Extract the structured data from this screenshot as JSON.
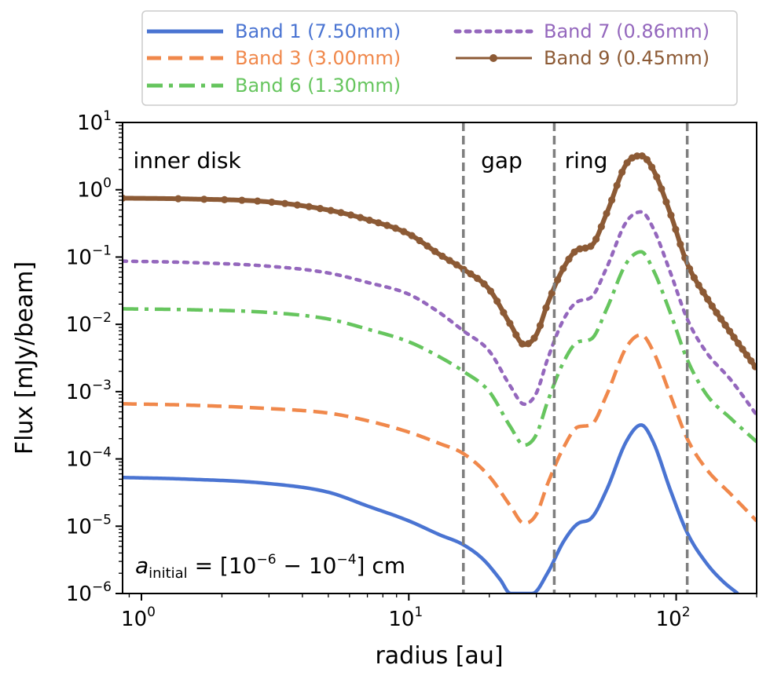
{
  "chart_data": {
    "type": "line",
    "xscale": "log",
    "yscale": "log",
    "xlabel": "radius [au]",
    "ylabel": "Flux [mJy/beam]",
    "xlim": [
      0.85,
      200
    ],
    "ylim": [
      1e-06,
      10
    ],
    "x_ticks": [
      {
        "value": 1,
        "base": "10",
        "exp": "0"
      },
      {
        "value": 10,
        "base": "10",
        "exp": "1"
      },
      {
        "value": 100,
        "base": "10",
        "exp": "2"
      }
    ],
    "y_ticks": [
      {
        "value": 1e-06,
        "base": "10",
        "exp": "−6"
      },
      {
        "value": 1e-05,
        "base": "10",
        "exp": "−5"
      },
      {
        "value": 0.0001,
        "base": "10",
        "exp": "−4"
      },
      {
        "value": 0.001,
        "base": "10",
        "exp": "−3"
      },
      {
        "value": 0.01,
        "base": "10",
        "exp": "−2"
      },
      {
        "value": 0.1,
        "base": "10",
        "exp": "−1"
      },
      {
        "value": 1,
        "base": "10",
        "exp": "0"
      },
      {
        "value": 10,
        "base": "10",
        "exp": "1"
      }
    ],
    "vlines": [
      16,
      35,
      110
    ],
    "regions": [
      {
        "label": "inner disk",
        "x": 0.9
      },
      {
        "label": "gap",
        "x": 18
      },
      {
        "label": "ring",
        "x": 37
      }
    ],
    "annotation": {
      "symbol": "a",
      "sub": "initial",
      "eq": " = [10",
      "e1": "−6",
      "mid": " − 10",
      "e2": "−4",
      "end": "] cm"
    },
    "series": [
      {
        "name": "Band 1 (7.50mm)",
        "color": "#4a74d2",
        "dash": "solid",
        "markers": false,
        "points": [
          [
            0.85,
            5.3e-05
          ],
          [
            1.5,
            5e-05
          ],
          [
            3,
            4.3e-05
          ],
          [
            5,
            3.2e-05
          ],
          [
            7,
            2e-05
          ],
          [
            10,
            1.2e-05
          ],
          [
            13,
            7.5e-06
          ],
          [
            16,
            5.3e-06
          ],
          [
            19,
            3.2e-06
          ],
          [
            22,
            1.6e-06
          ],
          [
            24,
            1e-06
          ],
          [
            29,
            1e-06
          ],
          [
            33,
            2e-06
          ],
          [
            38,
            6e-06
          ],
          [
            43,
            1.1e-05
          ],
          [
            48,
            1.3e-05
          ],
          [
            55,
            3.5e-05
          ],
          [
            65,
            0.00018
          ],
          [
            74,
            0.00032
          ],
          [
            82,
            0.00018
          ],
          [
            95,
            3.5e-05
          ],
          [
            110,
            8e-06
          ],
          [
            130,
            2.8e-06
          ],
          [
            150,
            1.5e-06
          ],
          [
            170,
            1e-06
          ]
        ]
      },
      {
        "name": "Band 3 (3.00mm)",
        "color": "#f0884b",
        "dash": "dashed",
        "markers": false,
        "points": [
          [
            0.85,
            0.00066
          ],
          [
            1.5,
            0.00063
          ],
          [
            3,
            0.00056
          ],
          [
            5,
            0.00048
          ],
          [
            7,
            0.00037
          ],
          [
            10,
            0.00025
          ],
          [
            13,
            0.00017
          ],
          [
            16,
            0.00012
          ],
          [
            20,
            5.5e-05
          ],
          [
            24,
            2e-05
          ],
          [
            27,
            1.1e-05
          ],
          [
            30,
            1.5e-05
          ],
          [
            33,
            4.2e-05
          ],
          [
            38,
            0.00015
          ],
          [
            43,
            0.0003
          ],
          [
            48,
            0.00032
          ],
          [
            55,
            0.0009
          ],
          [
            65,
            0.0045
          ],
          [
            74,
            0.007
          ],
          [
            82,
            0.004
          ],
          [
            95,
            0.0009
          ],
          [
            110,
            0.0002
          ],
          [
            130,
            7e-05
          ],
          [
            160,
            3e-05
          ],
          [
            200,
            1.2e-05
          ]
        ]
      },
      {
        "name": "Band 6 (1.30mm)",
        "color": "#66c55e",
        "dash": "dashdot",
        "markers": false,
        "points": [
          [
            0.85,
            0.017
          ],
          [
            1.5,
            0.0165
          ],
          [
            3,
            0.015
          ],
          [
            5,
            0.012
          ],
          [
            7,
            0.0085
          ],
          [
            10,
            0.0055
          ],
          [
            13,
            0.0033
          ],
          [
            16,
            0.002
          ],
          [
            20,
            0.001
          ],
          [
            24,
            0.0003
          ],
          [
            27,
            0.00016
          ],
          [
            30,
            0.00023
          ],
          [
            33,
            0.0007
          ],
          [
            38,
            0.0028
          ],
          [
            43,
            0.0055
          ],
          [
            48,
            0.006
          ],
          [
            55,
            0.017
          ],
          [
            65,
            0.08
          ],
          [
            74,
            0.12
          ],
          [
            82,
            0.065
          ],
          [
            95,
            0.015
          ],
          [
            110,
            0.003
          ],
          [
            130,
            0.0009
          ],
          [
            160,
            0.0004
          ],
          [
            200,
            0.00018
          ]
        ]
      },
      {
        "name": "Band 7 (0.86mm)",
        "color": "#9467bd",
        "dash": "dotted",
        "markers": false,
        "points": [
          [
            0.85,
            0.087
          ],
          [
            1.5,
            0.083
          ],
          [
            3,
            0.073
          ],
          [
            5,
            0.058
          ],
          [
            7,
            0.042
          ],
          [
            10,
            0.028
          ],
          [
            13,
            0.015
          ],
          [
            16,
            0.008
          ],
          [
            20,
            0.004
          ],
          [
            24,
            0.0012
          ],
          [
            27,
            0.00065
          ],
          [
            30,
            0.00095
          ],
          [
            33,
            0.003
          ],
          [
            38,
            0.012
          ],
          [
            43,
            0.022
          ],
          [
            48,
            0.025
          ],
          [
            55,
            0.07
          ],
          [
            65,
            0.33
          ],
          [
            74,
            0.47
          ],
          [
            82,
            0.27
          ],
          [
            95,
            0.06
          ],
          [
            110,
            0.012
          ],
          [
            130,
            0.0038
          ],
          [
            160,
            0.0015
          ],
          [
            200,
            0.00045
          ]
        ]
      },
      {
        "name": "Band 9 (0.45mm)",
        "color": "#8c5a35",
        "dash": "solid",
        "markers": true,
        "points": [
          [
            0.85,
            0.75
          ],
          [
            1.5,
            0.73
          ],
          [
            3,
            0.66
          ],
          [
            5,
            0.5
          ],
          [
            7,
            0.36
          ],
          [
            10,
            0.22
          ],
          [
            13,
            0.11
          ],
          [
            16,
            0.066
          ],
          [
            20,
            0.033
          ],
          [
            24,
            0.01
          ],
          [
            27,
            0.005
          ],
          [
            30,
            0.007
          ],
          [
            33,
            0.02
          ],
          [
            38,
            0.07
          ],
          [
            43,
            0.13
          ],
          [
            48,
            0.145
          ],
          [
            55,
            0.45
          ],
          [
            65,
            2.4
          ],
          [
            74,
            3.2
          ],
          [
            82,
            2.0
          ],
          [
            95,
            0.45
          ],
          [
            110,
            0.08
          ],
          [
            130,
            0.025
          ],
          [
            160,
            0.0075
          ],
          [
            200,
            0.0022
          ]
        ]
      }
    ],
    "legend": {
      "placement": "top",
      "columns": 2
    }
  }
}
